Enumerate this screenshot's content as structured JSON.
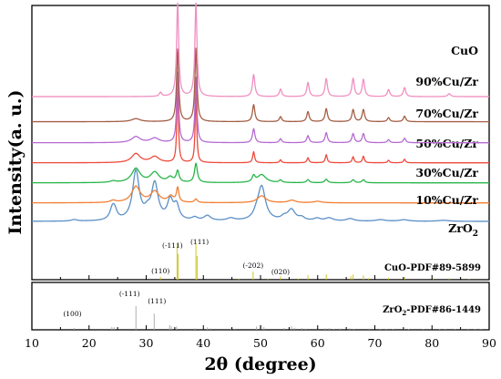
{
  "chart_data": {
    "type": "line",
    "xlabel": "2θ (degree)",
    "ylabel": "Intensity(a. u.)",
    "xlim": [
      10,
      90
    ],
    "xticks": [
      10,
      20,
      30,
      40,
      50,
      60,
      70,
      80,
      90
    ],
    "series": [
      {
        "name": "ZrO₂",
        "label_main": "ZrO",
        "label_sub": "2",
        "color": "#5b8fc7",
        "offset": 0,
        "base": 0.09,
        "peaks": [
          [
            17.4,
            0.03,
            0.6
          ],
          [
            24.1,
            0.22,
            0.55
          ],
          [
            24.5,
            0.14,
            0.5
          ],
          [
            28.2,
            0.98,
            0.7
          ],
          [
            30.2,
            0.13,
            0.6
          ],
          [
            31.5,
            0.72,
            0.7
          ],
          [
            34.2,
            0.38,
            0.6
          ],
          [
            35.3,
            0.28,
            0.55
          ],
          [
            38.5,
            0.06,
            0.6
          ],
          [
            40.7,
            0.1,
            0.7
          ],
          [
            44.8,
            0.05,
            0.8
          ],
          [
            49.3,
            0.09,
            0.6
          ],
          [
            50.2,
            0.68,
            0.8
          ],
          [
            54.1,
            0.06,
            0.6
          ],
          [
            55.4,
            0.22,
            0.8
          ],
          [
            57.2,
            0.06,
            0.6
          ],
          [
            59.9,
            0.05,
            0.7
          ],
          [
            62.0,
            0.06,
            0.8
          ],
          [
            65.7,
            0.05,
            0.8
          ],
          [
            71.0,
            0.03,
            1.0
          ],
          [
            75.1,
            0.03,
            1.0
          ],
          [
            82.0,
            0.02,
            1.2
          ]
        ]
      },
      {
        "name": "10%Cu/Zr",
        "color": "#f07f33",
        "offset": 0.4,
        "base": 0.06,
        "peaks": [
          [
            24.2,
            0.04,
            0.6
          ],
          [
            28.2,
            0.32,
            0.9
          ],
          [
            31.5,
            0.22,
            0.9
          ],
          [
            34.3,
            0.12,
            0.6
          ],
          [
            35.5,
            0.28,
            0.25
          ],
          [
            38.7,
            0.07,
            0.3
          ],
          [
            50.2,
            0.14,
            0.9
          ],
          [
            55.5,
            0.05,
            0.8
          ],
          [
            60.0,
            0.03,
            0.8
          ]
        ]
      },
      {
        "name": "30%Cu/Zr",
        "color": "#28b548",
        "offset": 0.8,
        "base": 0.06,
        "peaks": [
          [
            24.2,
            0.03,
            0.6
          ],
          [
            28.2,
            0.28,
            0.9
          ],
          [
            31.5,
            0.2,
            0.9
          ],
          [
            34.2,
            0.1,
            0.6
          ],
          [
            35.5,
            0.22,
            0.3
          ],
          [
            38.7,
            0.38,
            0.3
          ],
          [
            48.8,
            0.12,
            0.3
          ],
          [
            50.2,
            0.16,
            0.9
          ],
          [
            53.5,
            0.05,
            0.3
          ],
          [
            58.3,
            0.06,
            0.3
          ],
          [
            61.5,
            0.07,
            0.3
          ],
          [
            66.2,
            0.06,
            0.3
          ],
          [
            68.0,
            0.06,
            0.3
          ]
        ]
      },
      {
        "name": "50%Cu/Zr",
        "color": "#ee4a3b",
        "offset": 1.2,
        "base": 0.06,
        "peaks": [
          [
            28.2,
            0.18,
            0.9
          ],
          [
            31.5,
            0.12,
            0.9
          ],
          [
            35.5,
            1.6,
            0.16
          ],
          [
            38.7,
            1.42,
            0.16
          ],
          [
            48.8,
            0.22,
            0.2
          ],
          [
            53.5,
            0.06,
            0.2
          ],
          [
            58.3,
            0.1,
            0.2
          ],
          [
            61.5,
            0.16,
            0.2
          ],
          [
            66.2,
            0.12,
            0.2
          ],
          [
            68.0,
            0.13,
            0.2
          ],
          [
            72.4,
            0.05,
            0.2
          ],
          [
            75.2,
            0.07,
            0.2
          ]
        ]
      },
      {
        "name": "70%Cu/Zr",
        "color": "#b56ad1",
        "offset": 1.6,
        "base": 0.06,
        "peaks": [
          [
            28.2,
            0.12,
            0.9
          ],
          [
            31.5,
            0.09,
            0.9
          ],
          [
            35.5,
            1.4,
            0.2
          ],
          [
            38.7,
            1.3,
            0.2
          ],
          [
            48.8,
            0.28,
            0.25
          ],
          [
            53.5,
            0.08,
            0.25
          ],
          [
            58.3,
            0.14,
            0.25
          ],
          [
            61.5,
            0.2,
            0.25
          ],
          [
            66.2,
            0.18,
            0.25
          ],
          [
            68.0,
            0.18,
            0.25
          ],
          [
            72.4,
            0.06,
            0.25
          ],
          [
            75.2,
            0.09,
            0.25
          ]
        ]
      },
      {
        "name": "90%Cu/Zr",
        "color": "#a35e44",
        "offset": 2.02,
        "base": 0.06,
        "peaks": [
          [
            28.2,
            0.06,
            0.9
          ],
          [
            35.5,
            1.44,
            0.22
          ],
          [
            38.7,
            1.46,
            0.22
          ],
          [
            48.8,
            0.34,
            0.25
          ],
          [
            53.5,
            0.1,
            0.25
          ],
          [
            58.3,
            0.2,
            0.25
          ],
          [
            61.5,
            0.26,
            0.25
          ],
          [
            66.2,
            0.24,
            0.25
          ],
          [
            68.0,
            0.24,
            0.25
          ],
          [
            72.4,
            0.08,
            0.25
          ],
          [
            75.2,
            0.11,
            0.25
          ]
        ]
      },
      {
        "name": "CuO",
        "color": "#ef8fc1",
        "offset": 2.52,
        "base": 0.06,
        "peaks": [
          [
            32.5,
            0.08,
            0.25
          ],
          [
            35.5,
            1.86,
            0.22
          ],
          [
            38.7,
            1.86,
            0.22
          ],
          [
            48.8,
            0.44,
            0.25
          ],
          [
            53.5,
            0.15,
            0.25
          ],
          [
            58.3,
            0.28,
            0.25
          ],
          [
            61.5,
            0.36,
            0.25
          ],
          [
            66.2,
            0.36,
            0.25
          ],
          [
            68.0,
            0.34,
            0.25
          ],
          [
            72.4,
            0.14,
            0.25
          ],
          [
            75.2,
            0.18,
            0.25
          ],
          [
            83.0,
            0.06,
            0.3
          ]
        ]
      }
    ],
    "reference_panels": [
      {
        "name": "CuO-PDF#89-5899",
        "color": "#c8c20e",
        "sticks": [
          [
            32.5,
            0.08
          ],
          [
            35.4,
            0.98
          ],
          [
            35.6,
            0.7
          ],
          [
            38.7,
            0.99
          ],
          [
            38.9,
            0.65
          ],
          [
            46.2,
            0.03
          ],
          [
            48.7,
            0.22
          ],
          [
            51.3,
            0.03
          ],
          [
            53.5,
            0.09
          ],
          [
            56.6,
            0.03
          ],
          [
            58.3,
            0.12
          ],
          [
            61.5,
            0.15
          ],
          [
            65.8,
            0.1
          ],
          [
            66.2,
            0.14
          ],
          [
            68.0,
            0.12
          ],
          [
            68.9,
            0.04
          ],
          [
            72.4,
            0.05
          ],
          [
            75.2,
            0.07
          ],
          [
            80.2,
            0.03
          ],
          [
            83.0,
            0.04
          ],
          [
            86.5,
            0.02
          ]
        ],
        "peak_labels": [
          {
            "text": "(110)",
            "x": 32.5
          },
          {
            "text": "(-111)",
            "x": 35.4
          },
          {
            "text": "(111)",
            "x": 38.7
          },
          {
            "text": "(-202)",
            "x": 48.7
          },
          {
            "text": "(020)",
            "x": 53.5
          }
        ]
      },
      {
        "name": "ZrO₂-PDF#86-1449",
        "label_main": "ZrO",
        "label_sub": "2",
        "label_rest": "-PDF#86-1449",
        "color": "#a6a6a6",
        "sticks": [
          [
            17.4,
            0.08
          ],
          [
            24.0,
            0.12
          ],
          [
            24.4,
            0.1
          ],
          [
            28.2,
            1.0
          ],
          [
            31.4,
            0.68
          ],
          [
            34.1,
            0.2
          ],
          [
            34.4,
            0.14
          ],
          [
            35.3,
            0.14
          ],
          [
            38.5,
            0.06
          ],
          [
            40.7,
            0.1
          ],
          [
            41.2,
            0.06
          ],
          [
            44.8,
            0.06
          ],
          [
            45.5,
            0.05
          ],
          [
            49.3,
            0.14
          ],
          [
            50.1,
            0.2
          ],
          [
            50.6,
            0.12
          ],
          [
            54.1,
            0.08
          ],
          [
            55.4,
            0.16
          ],
          [
            55.9,
            0.08
          ],
          [
            57.2,
            0.08
          ],
          [
            57.9,
            0.05
          ],
          [
            59.9,
            0.07
          ],
          [
            61.3,
            0.06
          ],
          [
            62.0,
            0.07
          ],
          [
            62.8,
            0.04
          ],
          [
            63.9,
            0.05
          ],
          [
            65.6,
            0.07
          ],
          [
            66.3,
            0.04
          ],
          [
            69.0,
            0.05
          ],
          [
            71.0,
            0.04
          ],
          [
            72.0,
            0.04
          ],
          [
            73.2,
            0.03
          ],
          [
            75.1,
            0.05
          ],
          [
            75.9,
            0.03
          ],
          [
            78.5,
            0.03
          ],
          [
            80.0,
            0.04
          ],
          [
            81.3,
            0.03
          ],
          [
            82.3,
            0.04
          ],
          [
            84.0,
            0.03
          ],
          [
            85.1,
            0.04
          ],
          [
            86.3,
            0.03
          ],
          [
            87.5,
            0.03
          ],
          [
            88.6,
            0.03
          ]
        ],
        "peak_labels": [
          {
            "text": "(100)",
            "x": 17.4
          },
          {
            "text": "(-111)",
            "x": 28.2
          },
          {
            "text": "(111)",
            "x": 31.4
          }
        ]
      }
    ],
    "grid": false,
    "legend": "inline-right"
  }
}
